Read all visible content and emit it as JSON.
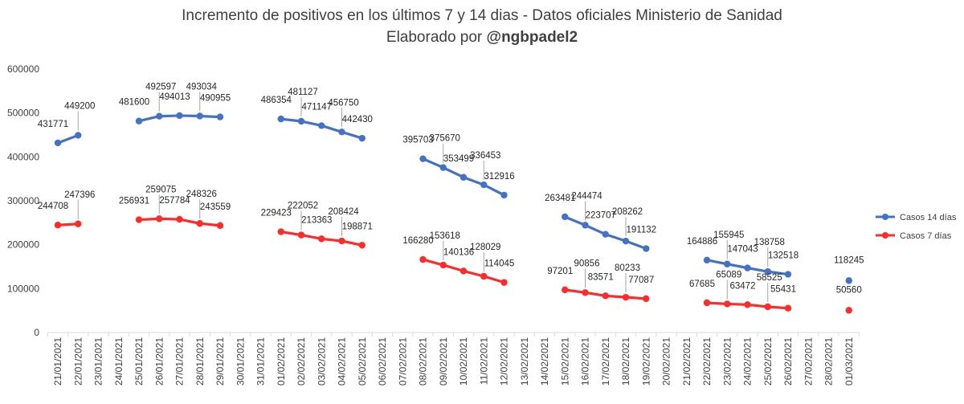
{
  "chart_data": {
    "type": "line",
    "title_line1": "Incremento de positivos en los últimos 7 y 14 dias - Datos oficiales Ministerio de Sanidad",
    "title_line2_prefix": "Elaborado por ",
    "title_line2_handle": "@ngbpadel2",
    "xlabel": "",
    "ylabel": "",
    "ylim": [
      0,
      600000
    ],
    "yticks": [
      "0",
      "100000",
      "200000",
      "300000",
      "400000",
      "500000",
      "600000"
    ],
    "grid": false,
    "legend_position": "right",
    "categories": [
      "21/01/2021",
      "22/01/2021",
      "23/01/2021",
      "24/01/2021",
      "25/01/2021",
      "26/01/2021",
      "27/01/2021",
      "28/01/2021",
      "29/01/2021",
      "30/01/2021",
      "31/01/2021",
      "01/02/2021",
      "02/02/2021",
      "03/02/2021",
      "04/02/2021",
      "05/02/2021",
      "06/02/2021",
      "07/02/2021",
      "08/02/2021",
      "09/02/2021",
      "10/02/2021",
      "11/02/2021",
      "12/02/2021",
      "13/02/2021",
      "14/02/2021",
      "15/02/2021",
      "16/02/2021",
      "17/02/2021",
      "18/02/2021",
      "19/02/2021",
      "20/02/2021",
      "21/02/2021",
      "22/02/2021",
      "23/02/2021",
      "24/02/2021",
      "25/02/2021",
      "26/02/2021",
      "27/02/2021",
      "28/02/2021",
      "01/03/2021"
    ],
    "series": [
      {
        "name": "Casos 14 días",
        "color": "#4472c4",
        "values": [
          431771,
          449200,
          null,
          null,
          481600,
          492597,
          494013,
          493034,
          490955,
          null,
          null,
          486354,
          481127,
          471147,
          456750,
          442430,
          null,
          null,
          395703,
          375670,
          353499,
          336453,
          312916,
          null,
          null,
          263481,
          244474,
          223707,
          208262,
          191132,
          null,
          null,
          164886,
          155945,
          147043,
          138758,
          132518,
          null,
          null,
          118245
        ]
      },
      {
        "name": "Casos 7 días",
        "color": "#ff2a2a",
        "values": [
          244708,
          247396,
          null,
          null,
          256931,
          259075,
          257784,
          248326,
          243559,
          null,
          null,
          229423,
          222052,
          213363,
          208424,
          198871,
          null,
          null,
          166280,
          153618,
          140136,
          128029,
          114045,
          null,
          null,
          97201,
          90856,
          83571,
          80233,
          77087,
          null,
          null,
          67685,
          65089,
          63472,
          58525,
          55431,
          null,
          null,
          50560
        ]
      }
    ]
  }
}
